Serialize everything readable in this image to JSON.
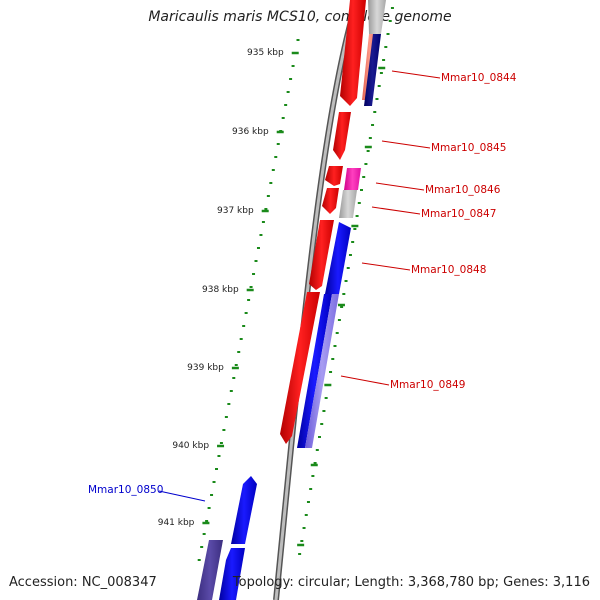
{
  "title": "Maricaulis maris MCS10, complete genome",
  "footer": {
    "accession": "Accession: NC_008347",
    "summary": "Topology: circular; Length: 3,368,780 bp; Genes: 3,116"
  },
  "colors": {
    "forward_gene": "#ff0000",
    "reverse_gene": "#0000ff",
    "forward_label": "#cc0000",
    "reverse_label": "#0000cc",
    "tick": "#1a8a1a",
    "backbone": "#808080"
  },
  "scale": {
    "unit": "kbp",
    "ticks": [
      "935 kbp",
      "936 kbp",
      "937 kbp",
      "938 kbp",
      "939 kbp",
      "940 kbp",
      "941 kbp"
    ]
  },
  "genes": [
    {
      "id": "Mmar10_0844",
      "strand": "+"
    },
    {
      "id": "Mmar10_0845",
      "strand": "+"
    },
    {
      "id": "Mmar10_0846",
      "strand": "+"
    },
    {
      "id": "Mmar10_0847",
      "strand": "+"
    },
    {
      "id": "Mmar10_0848",
      "strand": "+"
    },
    {
      "id": "Mmar10_0849",
      "strand": "+"
    },
    {
      "id": "Mmar10_0850",
      "strand": "-"
    }
  ]
}
